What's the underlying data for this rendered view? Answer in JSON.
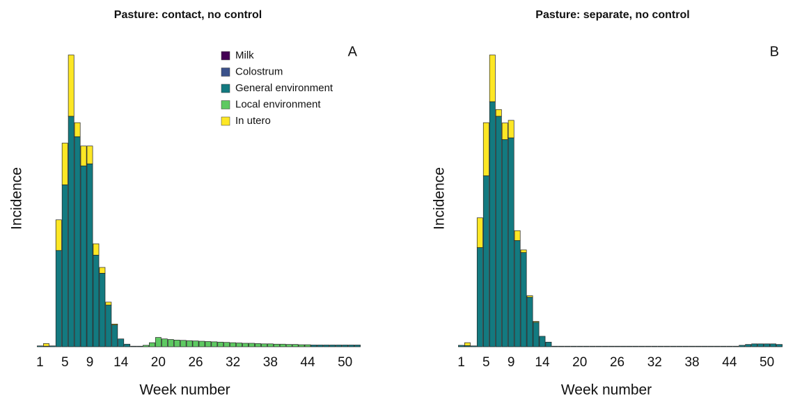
{
  "chart_data": [
    {
      "type": "bar",
      "stacked": true,
      "title": "Pasture: contact, no control",
      "annotation": "A",
      "x_label": "Week number",
      "y_label": "Incidence",
      "legend": "top-right",
      "categories": [
        1,
        null,
        null,
        null,
        5,
        null,
        null,
        null,
        9,
        null,
        null,
        null,
        null,
        14,
        null,
        null,
        null,
        null,
        null,
        20,
        null,
        null,
        null,
        null,
        null,
        26,
        null,
        null,
        null,
        null,
        null,
        32,
        null,
        null,
        null,
        null,
        null,
        38,
        null,
        null,
        null,
        null,
        null,
        44,
        null,
        null,
        null,
        null,
        null,
        50,
        null,
        null
      ],
      "ylim": [
        0,
        105
      ],
      "series": [
        {
          "name": "Milk",
          "color": "#440154",
          "values": [
            0,
            0,
            0,
            0,
            0,
            0,
            0,
            0,
            0,
            0,
            0,
            0,
            0,
            0,
            0,
            0,
            0,
            0,
            0,
            0,
            0,
            0,
            0,
            0,
            0,
            0,
            0,
            0,
            0,
            0,
            0,
            0,
            0,
            0,
            0,
            0,
            0,
            0,
            0,
            0,
            0,
            0,
            0,
            0,
            0,
            0,
            0,
            0,
            0,
            0,
            0,
            0
          ]
        },
        {
          "name": "Colostrum",
          "color": "#3b528b",
          "values": [
            0,
            0,
            0,
            0,
            0,
            0,
            0,
            0,
            0,
            0,
            0,
            0,
            0,
            0,
            0,
            0,
            0,
            0,
            0,
            0,
            0,
            0,
            0,
            0,
            0,
            0,
            0,
            0,
            0,
            0,
            0,
            0,
            0,
            0,
            0,
            0,
            0,
            0,
            0,
            0,
            0,
            0,
            0,
            0,
            0,
            0,
            0,
            0,
            0,
            0,
            0,
            0
          ]
        },
        {
          "name": "General environment",
          "color": "#137a80",
          "values": [
            0.3,
            0.2,
            0.3,
            33,
            55.5,
            79,
            72,
            62,
            62.7,
            31.4,
            25.2,
            14.3,
            7.5,
            2.7,
            0.9,
            0.2,
            0.2,
            0,
            0,
            0,
            0,
            0,
            0,
            0,
            0,
            0,
            0,
            0,
            0,
            0,
            0,
            0,
            0,
            0,
            0,
            0,
            0,
            0,
            0,
            0,
            0,
            0,
            0,
            0,
            0.6,
            0.6,
            0.6,
            0.6,
            0.6,
            0.6,
            0.6,
            0.6
          ]
        },
        {
          "name": "Local environment",
          "color": "#5ec962",
          "values": [
            0,
            0,
            0,
            0,
            0,
            0,
            0,
            0,
            0,
            0,
            0,
            0,
            0,
            0,
            0,
            0,
            0,
            0.5,
            1.4,
            3.2,
            2.7,
            2.5,
            2.3,
            2.2,
            2.1,
            2.0,
            1.9,
            1.8,
            1.7,
            1.6,
            1.5,
            1.4,
            1.3,
            1.2,
            1.2,
            1.1,
            1.0,
            1.0,
            0.9,
            0.9,
            0.8,
            0.8,
            0.7,
            0.7,
            0,
            0,
            0,
            0,
            0,
            0,
            0,
            0
          ]
        },
        {
          "name": "In utero",
          "color": "#fde725",
          "values": [
            0,
            0.9,
            0,
            10.5,
            14.3,
            21,
            4.8,
            6.8,
            6.1,
            3.9,
            2,
            1,
            0.3,
            0,
            0,
            0,
            0,
            0,
            0,
            0,
            0,
            0,
            0,
            0,
            0,
            0,
            0,
            0,
            0,
            0,
            0,
            0,
            0,
            0,
            0,
            0,
            0,
            0,
            0,
            0,
            0,
            0,
            0,
            0,
            0,
            0,
            0,
            0,
            0,
            0,
            0,
            0
          ]
        }
      ]
    },
    {
      "type": "bar",
      "stacked": true,
      "title": "Pasture: separate, no control",
      "annotation": "B",
      "x_label": "Week number",
      "y_label": "Incidence",
      "categories": [
        1,
        null,
        null,
        null,
        5,
        null,
        null,
        null,
        9,
        null,
        null,
        null,
        null,
        14,
        null,
        null,
        null,
        null,
        null,
        20,
        null,
        null,
        null,
        null,
        null,
        26,
        null,
        null,
        null,
        null,
        null,
        32,
        null,
        null,
        null,
        null,
        null,
        38,
        null,
        null,
        null,
        null,
        null,
        44,
        null,
        null,
        null,
        null,
        null,
        50,
        null,
        null
      ],
      "ylim": [
        0,
        105
      ],
      "series": [
        {
          "color": "#440154",
          "values": [
            0,
            0,
            0,
            0,
            0,
            0,
            0,
            0,
            0,
            0,
            0,
            0,
            0,
            0,
            0,
            0,
            0,
            0,
            0,
            0,
            0,
            0,
            0,
            0,
            0,
            0,
            0,
            0,
            0,
            0,
            0,
            0,
            0,
            0,
            0,
            0,
            0,
            0,
            0,
            0,
            0,
            0,
            0,
            0,
            0,
            0,
            0,
            0,
            0,
            0,
            0,
            0
          ]
        },
        {
          "color": "#3b528b",
          "values": [
            0,
            0,
            0,
            0,
            0,
            0,
            0,
            0,
            0,
            0,
            0,
            0,
            0,
            0,
            0,
            0,
            0,
            0,
            0,
            0,
            0,
            0,
            0,
            0,
            0,
            0,
            0,
            0,
            0,
            0,
            0,
            0,
            0,
            0,
            0,
            0,
            0,
            0,
            0,
            0,
            0,
            0,
            0,
            0,
            0,
            0,
            0,
            0,
            0,
            0,
            0,
            0
          ]
        },
        {
          "color": "#137a80",
          "values": [
            0.5,
            0.4,
            0.3,
            34,
            58.6,
            84,
            79,
            71,
            71.6,
            36.4,
            32.3,
            17,
            8.4,
            3.6,
            1.6,
            0.2,
            0.2,
            0.2,
            0.2,
            0.2,
            0.2,
            0.2,
            0.2,
            0.2,
            0.2,
            0.2,
            0.2,
            0.2,
            0.2,
            0.2,
            0.2,
            0.2,
            0.2,
            0.2,
            0.2,
            0.2,
            0.2,
            0.2,
            0.2,
            0.2,
            0.2,
            0.2,
            0.2,
            0.2,
            0.2,
            0.5,
            0.8,
            1,
            1,
            1,
            1,
            0.8
          ]
        },
        {
          "color": "#5ec962",
          "values": [
            0,
            0,
            0,
            0,
            0,
            0,
            0,
            0,
            0,
            0,
            0,
            0,
            0,
            0,
            0,
            0,
            0,
            0,
            0,
            0,
            0,
            0,
            0,
            0,
            0,
            0,
            0,
            0,
            0,
            0,
            0,
            0,
            0,
            0,
            0,
            0,
            0,
            0,
            0,
            0,
            0,
            0,
            0,
            0,
            0,
            0,
            0,
            0,
            0,
            0,
            0,
            0
          ]
        },
        {
          "color": "#fde725",
          "values": [
            0,
            1,
            0,
            10.2,
            18.2,
            16,
            2.3,
            5.7,
            6,
            3.4,
            0.9,
            0.5,
            0.3,
            0,
            0,
            0,
            0,
            0,
            0,
            0,
            0,
            0,
            0,
            0,
            0,
            0,
            0,
            0,
            0,
            0,
            0,
            0,
            0,
            0,
            0,
            0,
            0,
            0,
            0,
            0,
            0,
            0,
            0,
            0,
            0,
            0,
            0,
            0,
            0,
            0,
            0,
            0
          ]
        }
      ]
    }
  ]
}
